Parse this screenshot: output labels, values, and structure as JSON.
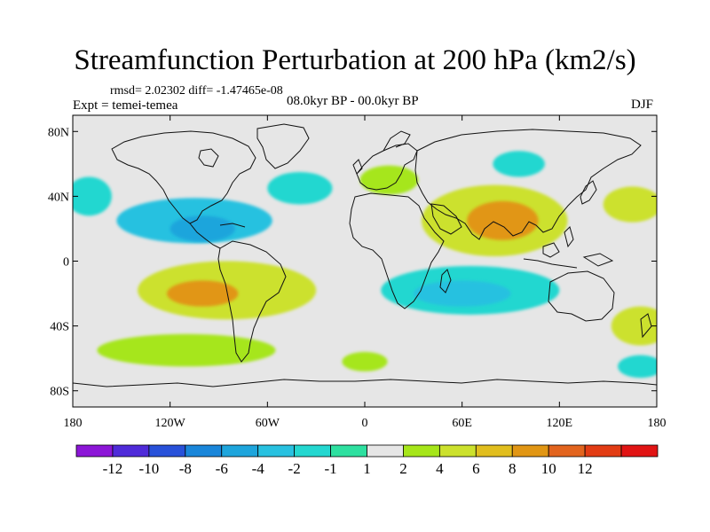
{
  "title": "Streamfunction Perturbation at 200 hPa (km2/s)",
  "stats_line": "rmsd= 2.02302 diff= -1.47465e-08",
  "experiment_label": "Expt = temei-temea",
  "period_label": "08.0kyr BP - 00.0kyr BP",
  "season_label": "DJF",
  "map": {
    "projection": "cylindrical equidistant",
    "lon_range": [
      -180,
      180
    ],
    "lat_range": [
      -90,
      90
    ],
    "background_color": "#e6e6e6",
    "x_ticks": [
      {
        "lon": -180,
        "label": "180"
      },
      {
        "lon": -120,
        "label": "120W"
      },
      {
        "lon": -60,
        "label": "60W"
      },
      {
        "lon": 0,
        "label": "0"
      },
      {
        "lon": 60,
        "label": "60E"
      },
      {
        "lon": 120,
        "label": "120E"
      },
      {
        "lon": 180,
        "label": "180"
      }
    ],
    "y_ticks": [
      {
        "lat": 80,
        "label": "80N"
      },
      {
        "lat": 40,
        "label": "40N"
      },
      {
        "lat": 0,
        "label": "0"
      },
      {
        "lat": -40,
        "label": "40S"
      },
      {
        "lat": -80,
        "label": "80S"
      }
    ],
    "anomaly_features": [
      {
        "name": "north-atlantic-negative",
        "lon": -105,
        "lat": 25,
        "rx": 48,
        "ry": 14,
        "level": -4
      },
      {
        "name": "north-pacific-negative-core",
        "lon": -100,
        "lat": 20,
        "rx": 20,
        "ry": 8,
        "level": -6
      },
      {
        "name": "east-pacific-negative",
        "lon": -170,
        "lat": 40,
        "rx": 14,
        "ry": 12,
        "level": -2
      },
      {
        "name": "atlantic-negative",
        "lon": -40,
        "lat": 45,
        "rx": 20,
        "ry": 10,
        "level": -2
      },
      {
        "name": "europe-positive",
        "lon": 15,
        "lat": 50,
        "rx": 18,
        "ry": 9,
        "level": 2
      },
      {
        "name": "north-russia-negative",
        "lon": 95,
        "lat": 60,
        "rx": 16,
        "ry": 8,
        "level": -2
      },
      {
        "name": "asia-positive",
        "lon": 80,
        "lat": 25,
        "rx": 45,
        "ry": 22,
        "level": 4
      },
      {
        "name": "asia-positive-core",
        "lon": 85,
        "lat": 25,
        "rx": 22,
        "ry": 12,
        "level": 8
      },
      {
        "name": "west-pacific-positive",
        "lon": 165,
        "lat": 35,
        "rx": 18,
        "ry": 11,
        "level": 4
      },
      {
        "name": "south-pacific-positive",
        "lon": -85,
        "lat": -18,
        "rx": 55,
        "ry": 18,
        "level": 4
      },
      {
        "name": "south-pacific-positive-core",
        "lon": -100,
        "lat": -20,
        "rx": 22,
        "ry": 8,
        "level": 8
      },
      {
        "name": "south-indian-negative",
        "lon": 65,
        "lat": -18,
        "rx": 55,
        "ry": 15,
        "level": -2
      },
      {
        "name": "south-indian-negative-core",
        "lon": 60,
        "lat": -20,
        "rx": 30,
        "ry": 8,
        "level": -4
      },
      {
        "name": "southern-ocean-positive",
        "lon": -110,
        "lat": -55,
        "rx": 55,
        "ry": 10,
        "level": 2
      },
      {
        "name": "south-atlantic-positive",
        "lon": 0,
        "lat": -62,
        "rx": 14,
        "ry": 6,
        "level": 2
      },
      {
        "name": "australia-positive",
        "lon": 170,
        "lat": -40,
        "rx": 18,
        "ry": 12,
        "level": 4
      },
      {
        "name": "south-pacific-negative",
        "lon": 170,
        "lat": -65,
        "rx": 14,
        "ry": 7,
        "level": -2
      }
    ]
  },
  "colorbar": {
    "levels": [
      {
        "label": "",
        "color": "#8c16d7"
      },
      {
        "label": "-12",
        "color": "#4f2bd9"
      },
      {
        "label": "-10",
        "color": "#2851d9"
      },
      {
        "label": "-8",
        "color": "#1a86da"
      },
      {
        "label": "-6",
        "color": "#1ea5dc"
      },
      {
        "label": "-4",
        "color": "#28c1e0"
      },
      {
        "label": "-2",
        "color": "#24d7d0"
      },
      {
        "label": "-1",
        "color": "#2ee0a0"
      },
      {
        "label": "1",
        "color": "#e6e6e6"
      },
      {
        "label": "2",
        "color": "#a6e61a"
      },
      {
        "label": "4",
        "color": "#cce12d"
      },
      {
        "label": "6",
        "color": "#e1be1e"
      },
      {
        "label": "8",
        "color": "#e19614"
      },
      {
        "label": "10",
        "color": "#e2641e"
      },
      {
        "label": "12",
        "color": "#e23c14"
      },
      {
        "label": "",
        "color": "#e11414"
      }
    ]
  }
}
